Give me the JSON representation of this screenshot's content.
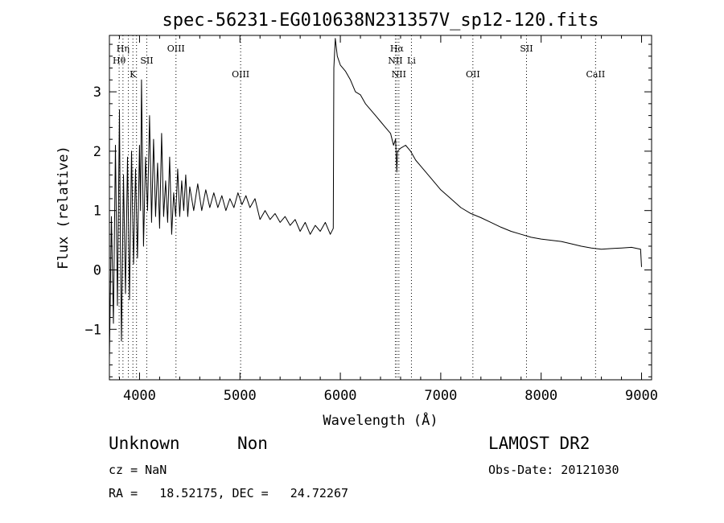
{
  "chart_data": {
    "type": "line",
    "title": "spec-56231-EG010638N231357V_sp12-120.fits",
    "xlabel": "Wavelength (Å)",
    "ylabel": "Flux (relative)",
    "xlim": [
      3700,
      9100
    ],
    "ylim": [
      -1.85,
      3.95
    ],
    "xticks": [
      4000,
      5000,
      6000,
      7000,
      8000,
      9000
    ],
    "yticks": [
      -1,
      0,
      1,
      2,
      3
    ],
    "grid": false,
    "line_color": "#000000",
    "series": [
      {
        "points": [
          [
            3700,
            -1.5
          ],
          [
            3720,
            0.9
          ],
          [
            3740,
            -0.9
          ],
          [
            3760,
            2.1
          ],
          [
            3780,
            -0.6
          ],
          [
            3800,
            2.7
          ],
          [
            3810,
            0.4
          ],
          [
            3820,
            -1.2
          ],
          [
            3840,
            1.6
          ],
          [
            3860,
            -0.4
          ],
          [
            3880,
            1.9
          ],
          [
            3900,
            -0.5
          ],
          [
            3920,
            2.0
          ],
          [
            3940,
            0.1
          ],
          [
            3960,
            1.7
          ],
          [
            3980,
            0.2
          ],
          [
            4000,
            2.1
          ],
          [
            4010,
            1.0
          ],
          [
            4020,
            3.2
          ],
          [
            4040,
            0.4
          ],
          [
            4060,
            1.9
          ],
          [
            4080,
            1.0
          ],
          [
            4100,
            2.6
          ],
          [
            4120,
            0.8
          ],
          [
            4140,
            2.2
          ],
          [
            4160,
            0.9
          ],
          [
            4180,
            1.8
          ],
          [
            4200,
            0.7
          ],
          [
            4220,
            2.3
          ],
          [
            4240,
            0.9
          ],
          [
            4260,
            1.5
          ],
          [
            4280,
            0.8
          ],
          [
            4300,
            1.9
          ],
          [
            4320,
            0.6
          ],
          [
            4340,
            1.3
          ],
          [
            4360,
            0.9
          ],
          [
            4380,
            1.7
          ],
          [
            4400,
            0.9
          ],
          [
            4420,
            1.5
          ],
          [
            4440,
            1.0
          ],
          [
            4460,
            1.6
          ],
          [
            4480,
            0.9
          ],
          [
            4500,
            1.4
          ],
          [
            4540,
            1.0
          ],
          [
            4580,
            1.45
          ],
          [
            4620,
            1.0
          ],
          [
            4660,
            1.35
          ],
          [
            4700,
            1.05
          ],
          [
            4740,
            1.3
          ],
          [
            4780,
            1.05
          ],
          [
            4820,
            1.25
          ],
          [
            4860,
            1.0
          ],
          [
            4900,
            1.2
          ],
          [
            4940,
            1.05
          ],
          [
            4980,
            1.3
          ],
          [
            5020,
            1.1
          ],
          [
            5060,
            1.25
          ],
          [
            5100,
            1.05
          ],
          [
            5150,
            1.2
          ],
          [
            5200,
            0.85
          ],
          [
            5250,
            1.0
          ],
          [
            5300,
            0.85
          ],
          [
            5350,
            0.95
          ],
          [
            5400,
            0.8
          ],
          [
            5450,
            0.9
          ],
          [
            5500,
            0.75
          ],
          [
            5550,
            0.85
          ],
          [
            5600,
            0.65
          ],
          [
            5650,
            0.8
          ],
          [
            5700,
            0.6
          ],
          [
            5750,
            0.75
          ],
          [
            5800,
            0.65
          ],
          [
            5850,
            0.8
          ],
          [
            5900,
            0.6
          ],
          [
            5930,
            0.7
          ],
          [
            5935,
            3.4
          ],
          [
            5950,
            3.9
          ],
          [
            5970,
            3.6
          ],
          [
            6000,
            3.45
          ],
          [
            6050,
            3.35
          ],
          [
            6100,
            3.2
          ],
          [
            6150,
            3.0
          ],
          [
            6200,
            2.95
          ],
          [
            6250,
            2.8
          ],
          [
            6300,
            2.7
          ],
          [
            6350,
            2.6
          ],
          [
            6400,
            2.5
          ],
          [
            6450,
            2.4
          ],
          [
            6500,
            2.3
          ],
          [
            6530,
            2.1
          ],
          [
            6550,
            2.2
          ],
          [
            6563,
            1.65
          ],
          [
            6570,
            2.0
          ],
          [
            6600,
            2.05
          ],
          [
            6650,
            2.1
          ],
          [
            6700,
            2.0
          ],
          [
            6750,
            1.85
          ],
          [
            6800,
            1.75
          ],
          [
            6900,
            1.55
          ],
          [
            7000,
            1.35
          ],
          [
            7100,
            1.2
          ],
          [
            7200,
            1.05
          ],
          [
            7300,
            0.95
          ],
          [
            7400,
            0.88
          ],
          [
            7500,
            0.8
          ],
          [
            7600,
            0.72
          ],
          [
            7700,
            0.65
          ],
          [
            7800,
            0.6
          ],
          [
            7900,
            0.55
          ],
          [
            8000,
            0.52
          ],
          [
            8100,
            0.5
          ],
          [
            8200,
            0.48
          ],
          [
            8300,
            0.44
          ],
          [
            8400,
            0.4
          ],
          [
            8500,
            0.37
          ],
          [
            8600,
            0.35
          ],
          [
            8700,
            0.36
          ],
          [
            8800,
            0.37
          ],
          [
            8900,
            0.38
          ],
          [
            8990,
            0.35
          ],
          [
            9000,
            0.05
          ]
        ]
      }
    ],
    "line_markers": [
      {
        "label": "Hη",
        "x": 3835,
        "row": 1
      },
      {
        "label": "Hθ",
        "x": 3797,
        "row": 2
      },
      {
        "label": "SII",
        "x": 4072,
        "row": 2
      },
      {
        "label": "K",
        "x": 3934,
        "row": 3
      },
      {
        "label": "OIII",
        "x": 4363,
        "row": 1
      },
      {
        "label": "OIII",
        "x": 5007,
        "row": 3
      },
      {
        "label": "Hα",
        "x": 6563,
        "row": 1
      },
      {
        "label": "NII",
        "x": 6548,
        "row": 2
      },
      {
        "label": "Li",
        "x": 6708,
        "row": 2
      },
      {
        "label": "NII",
        "x": 6583,
        "row": 3
      },
      {
        "label": "OII",
        "x": 7320,
        "row": 3
      },
      {
        "label": "SII",
        "x": 7854,
        "row": 1
      },
      {
        "label": "CaII",
        "x": 8542,
        "row": 3
      }
    ],
    "marker_lines_x": [
      3797,
      3835,
      3889,
      3934,
      3970,
      4072,
      4363,
      5007,
      6548,
      6563,
      6583,
      6708,
      7320,
      7854,
      8542
    ]
  },
  "footer": {
    "class": "Unknown",
    "subclass": "Non",
    "survey": "LAMOST DR2",
    "cz": "cz = NaN",
    "obs_date": "Obs-Date: 20121030",
    "radec": "RA =   18.52175, DEC =   24.72267"
  }
}
